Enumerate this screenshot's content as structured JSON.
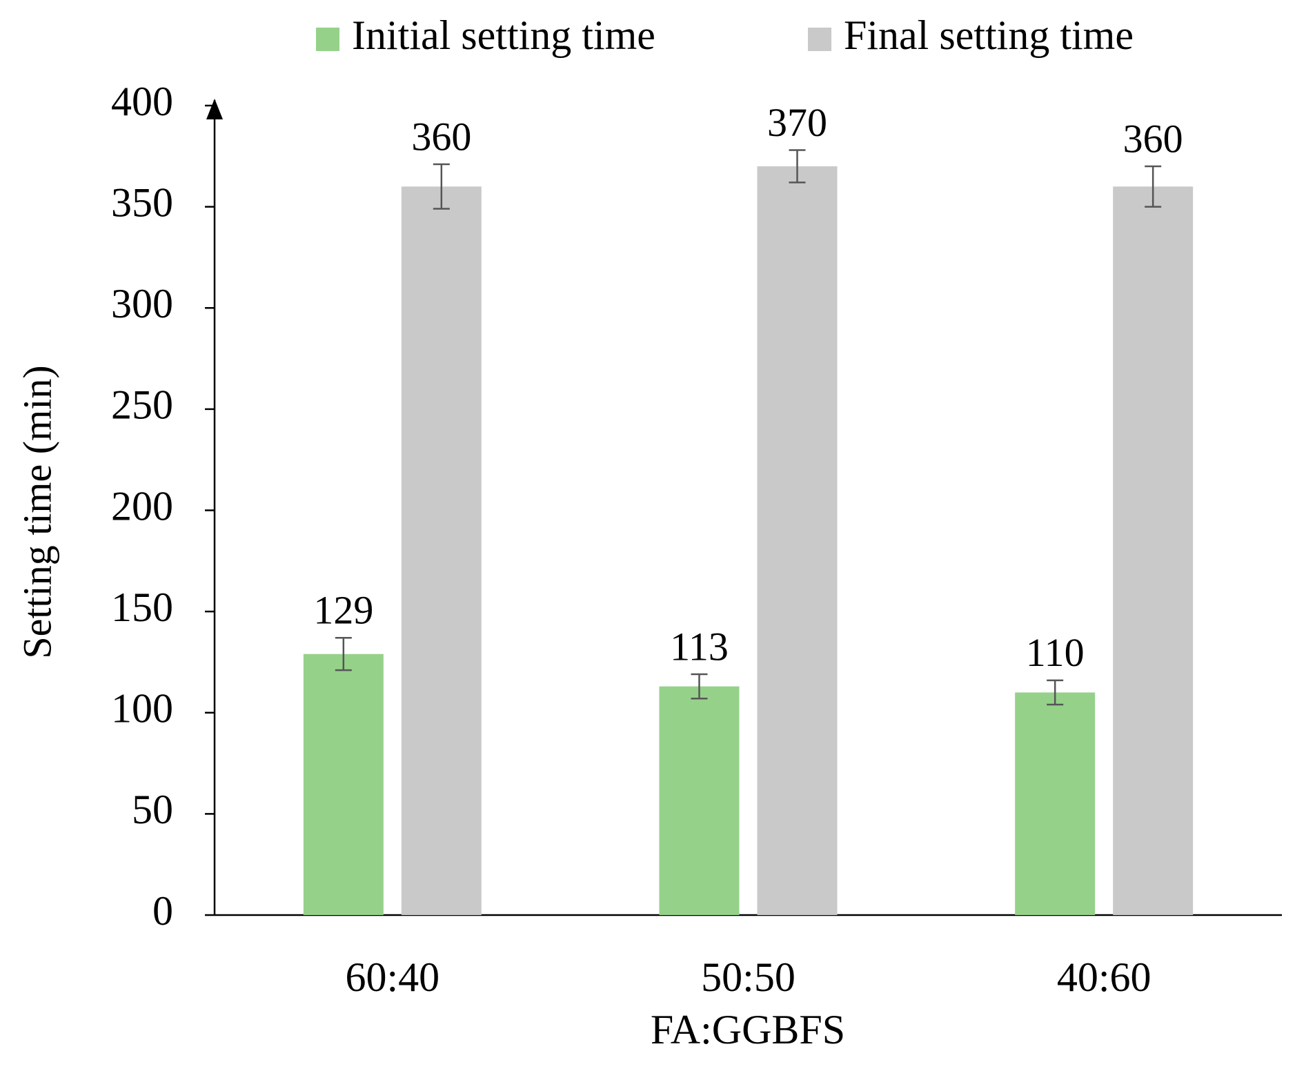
{
  "chart_data": {
    "type": "bar",
    "x_label": "FA:GGBFS",
    "y_label": "Setting time (min)",
    "categories": [
      "60:40",
      "50:50",
      "40:60"
    ],
    "series": [
      {
        "name": "Initial setting time",
        "color": "#96d18a",
        "values": [
          129,
          113,
          110
        ],
        "errors": [
          8,
          6,
          6
        ]
      },
      {
        "name": "Final setting time",
        "color": "#c9c9c9",
        "values": [
          360,
          370,
          360
        ],
        "errors": [
          11,
          8,
          10
        ]
      }
    ],
    "ylim": [
      0,
      400
    ],
    "yticks": [
      0,
      50,
      100,
      150,
      200,
      250,
      300,
      350,
      400
    ],
    "grid": false,
    "legend": "top",
    "data_labels": true
  }
}
